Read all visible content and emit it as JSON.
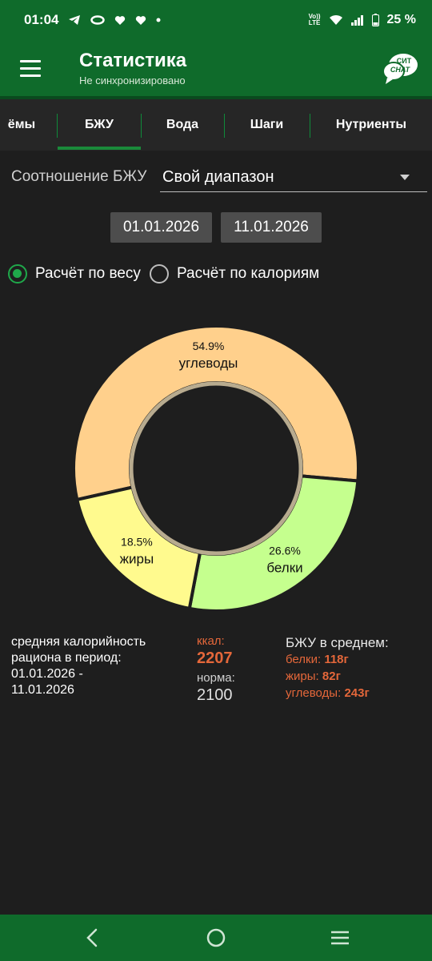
{
  "status_bar": {
    "time": "01:04",
    "battery": "25 %",
    "volte_top": "Vo))",
    "volte_bottom": "LTE"
  },
  "app_bar": {
    "title": "Статистика",
    "subtitle": "Не синхронизировано",
    "chat_line1": "СИТ",
    "chat_line2": "CHAT"
  },
  "tabs": [
    {
      "label": "ёмы"
    },
    {
      "label": "БЖУ"
    },
    {
      "label": "Вода"
    },
    {
      "label": "Шаги"
    },
    {
      "label": "Нутриенты"
    }
  ],
  "ratio": {
    "label": "Соотношение БЖУ",
    "value": "Свой диапазон"
  },
  "dates": {
    "from": "01.01.2026",
    "to": "11.01.2026"
  },
  "radios": {
    "by_weight": "Расчёт по весу",
    "by_calories": "Расчёт по калориям",
    "selected": "by_weight"
  },
  "chart_data": {
    "type": "pie",
    "slices": [
      {
        "label": "углеводы",
        "percent_label": "54.9%",
        "value": 54.9,
        "color": "#ffd08c"
      },
      {
        "label": "белки",
        "percent_label": "26.6%",
        "value": 26.6,
        "color": "#c5ff8e"
      },
      {
        "label": "жиры",
        "percent_label": "18.5%",
        "value": 18.5,
        "color": "#fffa8e"
      }
    ]
  },
  "summary": {
    "avg_text_line1": "средняя калорийность",
    "avg_text_line2": "рациона в период:",
    "period_line1": "01.01.2026 -",
    "period_line2": "11.01.2026",
    "kcal_label": "ккал:",
    "kcal_value": "2207",
    "norm_label": "норма:",
    "norm_value": "2100",
    "bju_head": "БЖУ в среднем:",
    "protein_label": "белки:",
    "protein_value": "118г",
    "fat_label": "жиры:",
    "fat_value": "82г",
    "carbs_label": "углеводы:",
    "carbs_value": "243г"
  },
  "colors": {
    "primary": "#0f6b2b",
    "accent": "#1fa84a",
    "highlight": "#e4673a"
  }
}
